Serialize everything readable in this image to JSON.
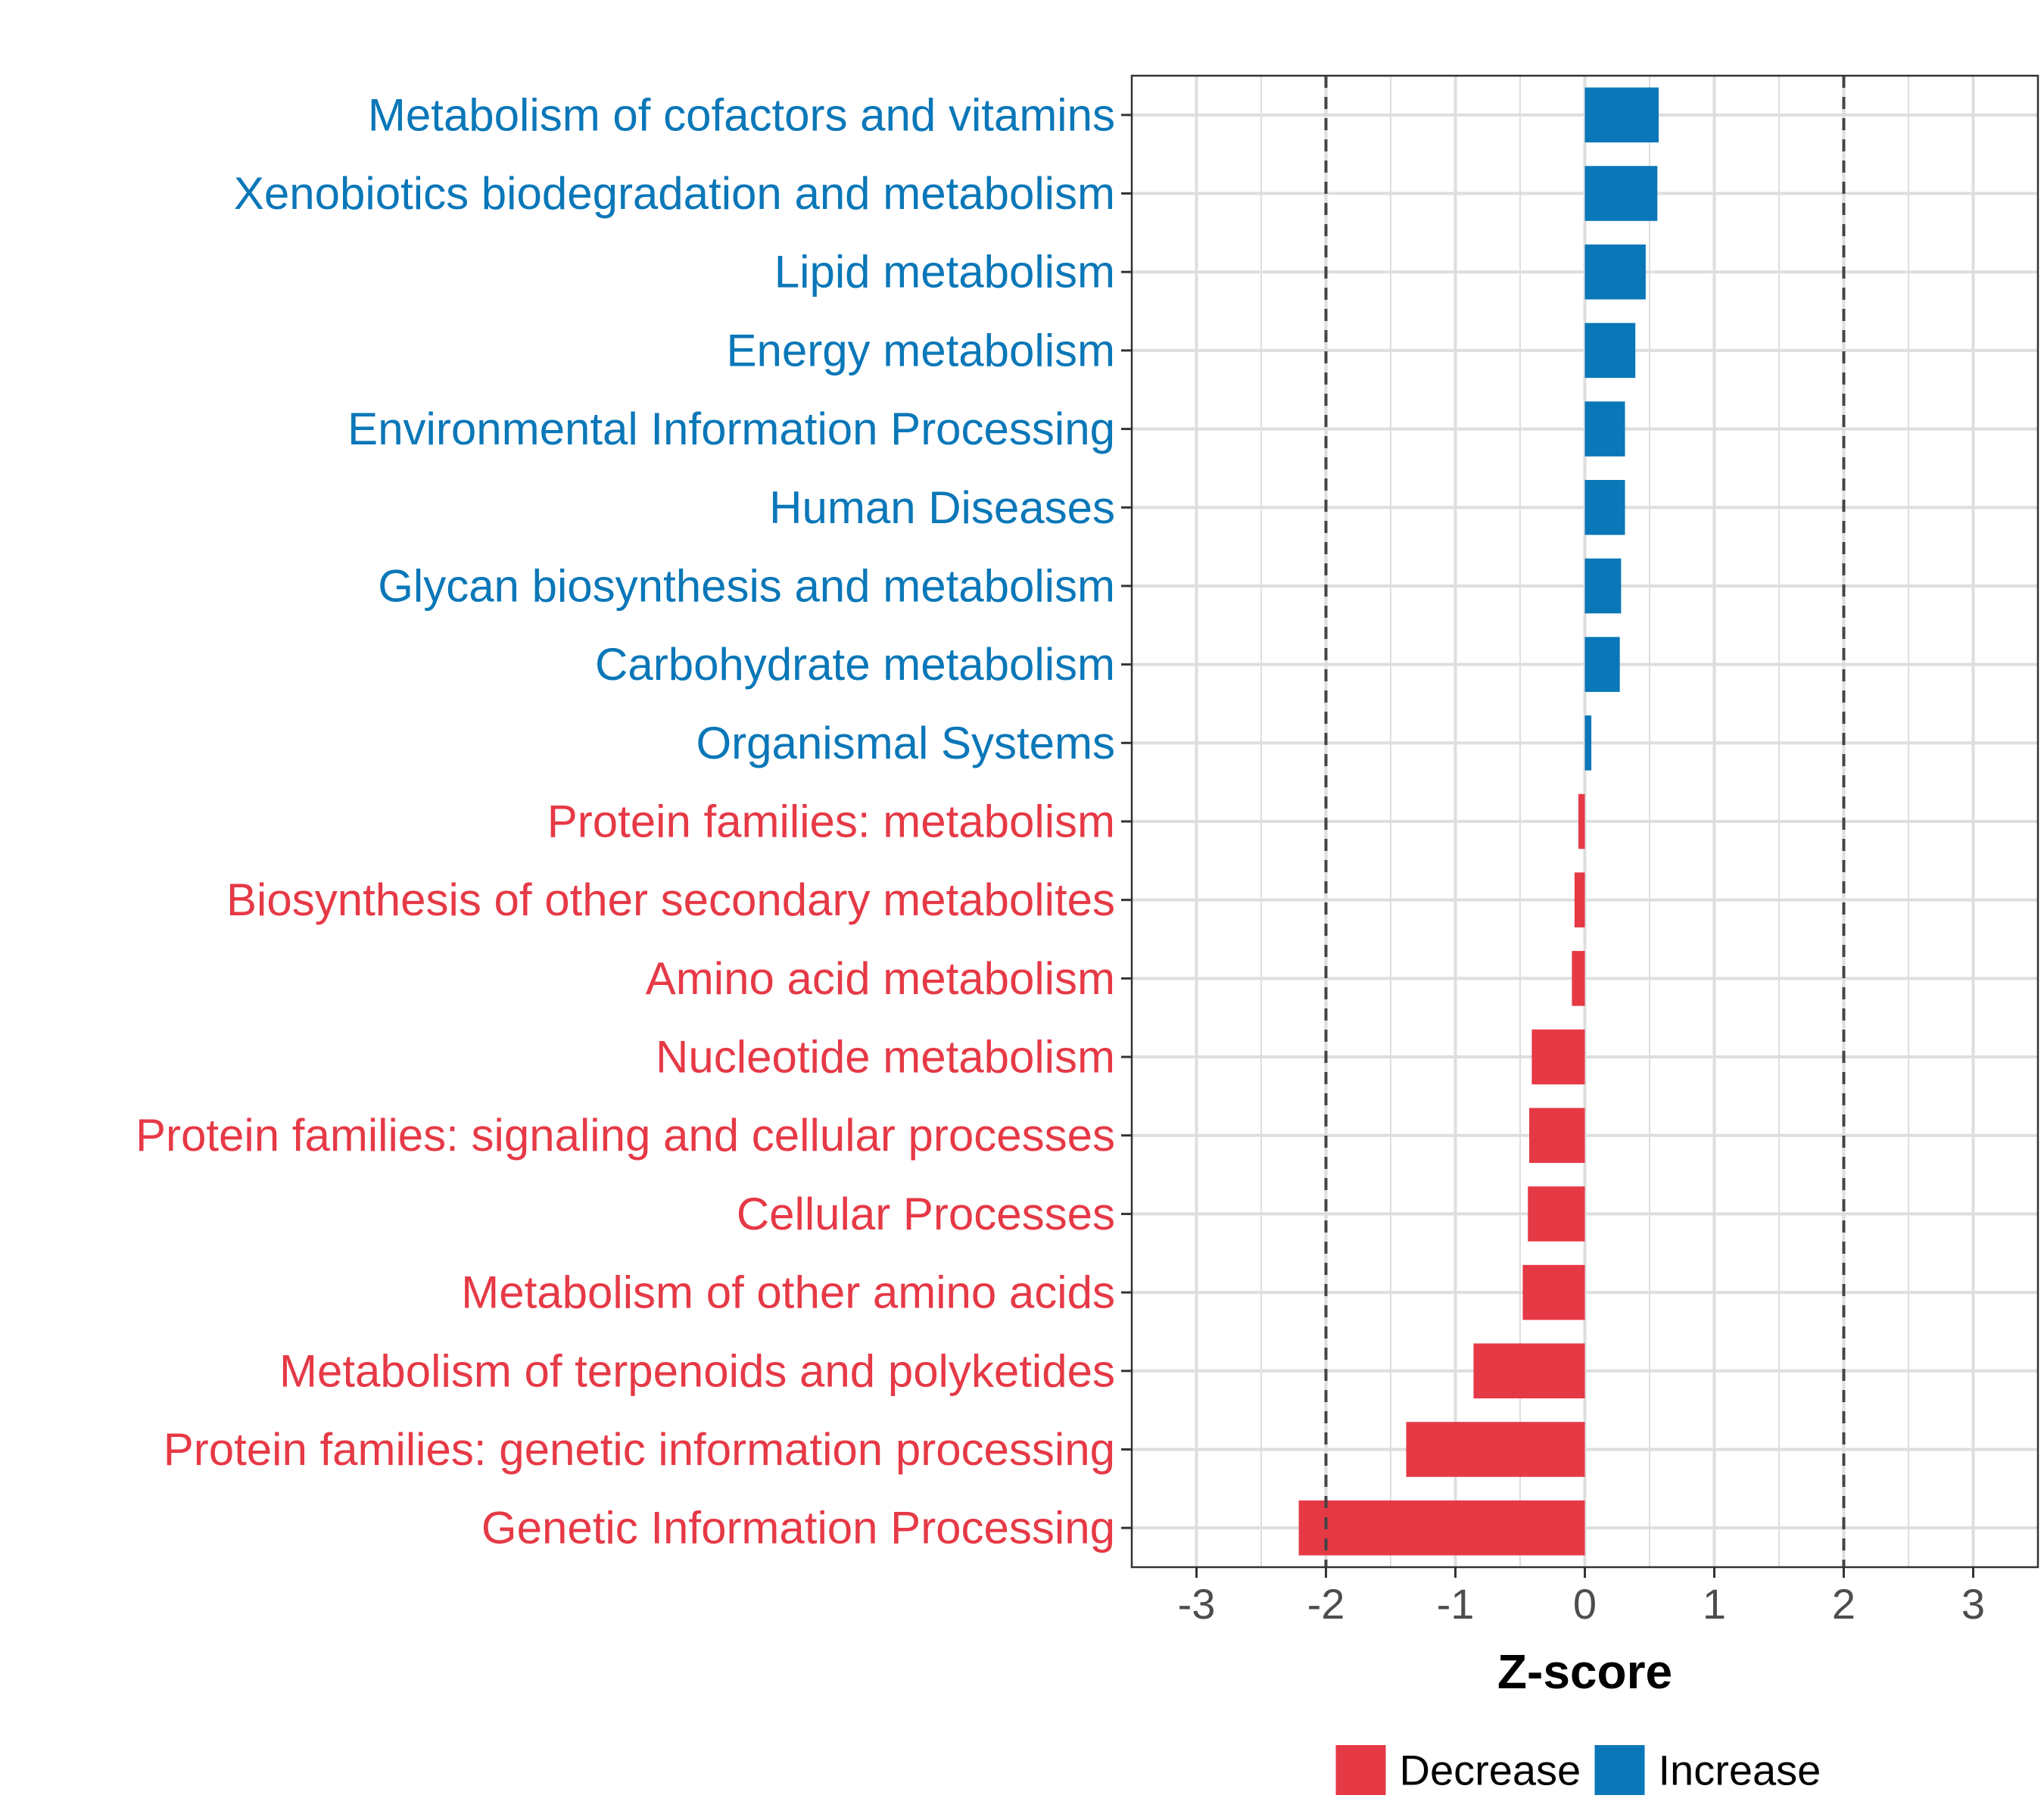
{
  "chart_data": {
    "type": "bar",
    "orientation": "horizontal",
    "title": "",
    "xlabel": "Z-score",
    "ylabel": "",
    "xlim": [
      -3.5,
      3.5
    ],
    "xticks": [
      -3,
      -2,
      -1,
      0,
      1,
      2,
      3
    ],
    "threshold_lines": [
      -2,
      2
    ],
    "grid": true,
    "legend_position": "bottom",
    "colors": {
      "Decrease": "#e63946",
      "Increase": "#0a77b8"
    },
    "legend": [
      {
        "name": "Decrease",
        "color": "#e63946"
      },
      {
        "name": "Increase",
        "color": "#0a77b8"
      }
    ],
    "categories": [
      "Metabolism of cofactors and vitamins",
      "Xenobiotics biodegradation and metabolism",
      "Lipid metabolism",
      "Energy metabolism",
      "Environmental Information Processing",
      "Human Diseases",
      "Glycan biosynthesis and metabolism",
      "Carbohydrate metabolism",
      "Organismal Systems",
      "Protein families: metabolism",
      "Biosynthesis of other secondary metabolites",
      "Amino acid metabolism",
      "Nucleotide metabolism",
      "Protein families: signaling and cellular processes",
      "Cellular Processes",
      "Metabolism of other amino acids",
      "Metabolism of terpenoids and polyketides",
      "Protein families: genetic information processing",
      "Genetic Information Processing"
    ],
    "values": [
      0.57,
      0.56,
      0.47,
      0.39,
      0.31,
      0.31,
      0.28,
      0.27,
      0.05,
      -0.05,
      -0.08,
      -0.1,
      -0.41,
      -0.43,
      -0.44,
      -0.48,
      -0.86,
      -1.38,
      -2.21
    ],
    "groups": [
      "Increase",
      "Increase",
      "Increase",
      "Increase",
      "Increase",
      "Increase",
      "Increase",
      "Increase",
      "Increase",
      "Decrease",
      "Decrease",
      "Decrease",
      "Decrease",
      "Decrease",
      "Decrease",
      "Decrease",
      "Decrease",
      "Decrease",
      "Decrease"
    ]
  }
}
